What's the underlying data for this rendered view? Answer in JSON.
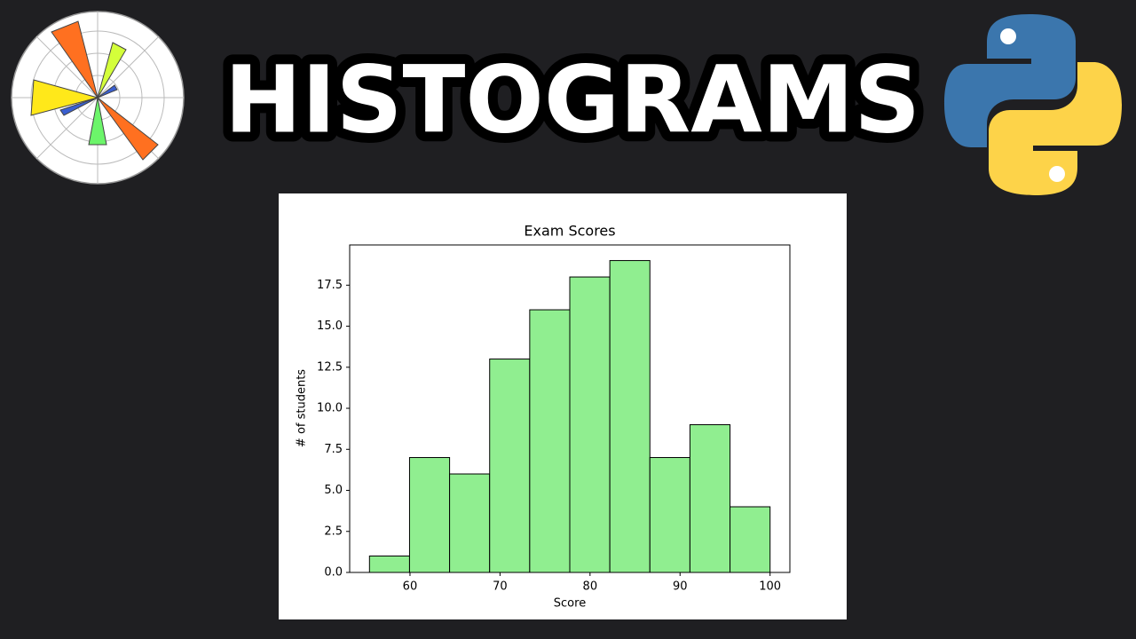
{
  "heading": "HISTOGRAMS",
  "chart_data": {
    "type": "histogram",
    "title": "Exam Scores",
    "xlabel": "Score",
    "ylabel": "# of students",
    "bins": [
      55.5,
      59.95,
      64.4,
      68.85,
      73.3,
      77.75,
      82.2,
      86.65,
      91.1,
      95.55,
      100
    ],
    "counts": [
      1,
      7,
      6,
      13,
      16,
      18,
      19,
      7,
      9,
      4
    ],
    "color": "#90ee90",
    "edgecolor": "#000000",
    "xlim": [
      53.3,
      102.2
    ],
    "xticks": [
      60,
      70,
      80,
      90,
      100
    ],
    "ylim": [
      0,
      19.95
    ],
    "yticks": [
      {
        "value": 0,
        "label": "0.0"
      },
      2.5,
      {
        "value": 5,
        "label": "5.0"
      },
      7.5,
      {
        "value": 10,
        "label": "10.0"
      },
      12.5,
      {
        "value": 15,
        "label": "15.0"
      },
      17.5
    ]
  }
}
